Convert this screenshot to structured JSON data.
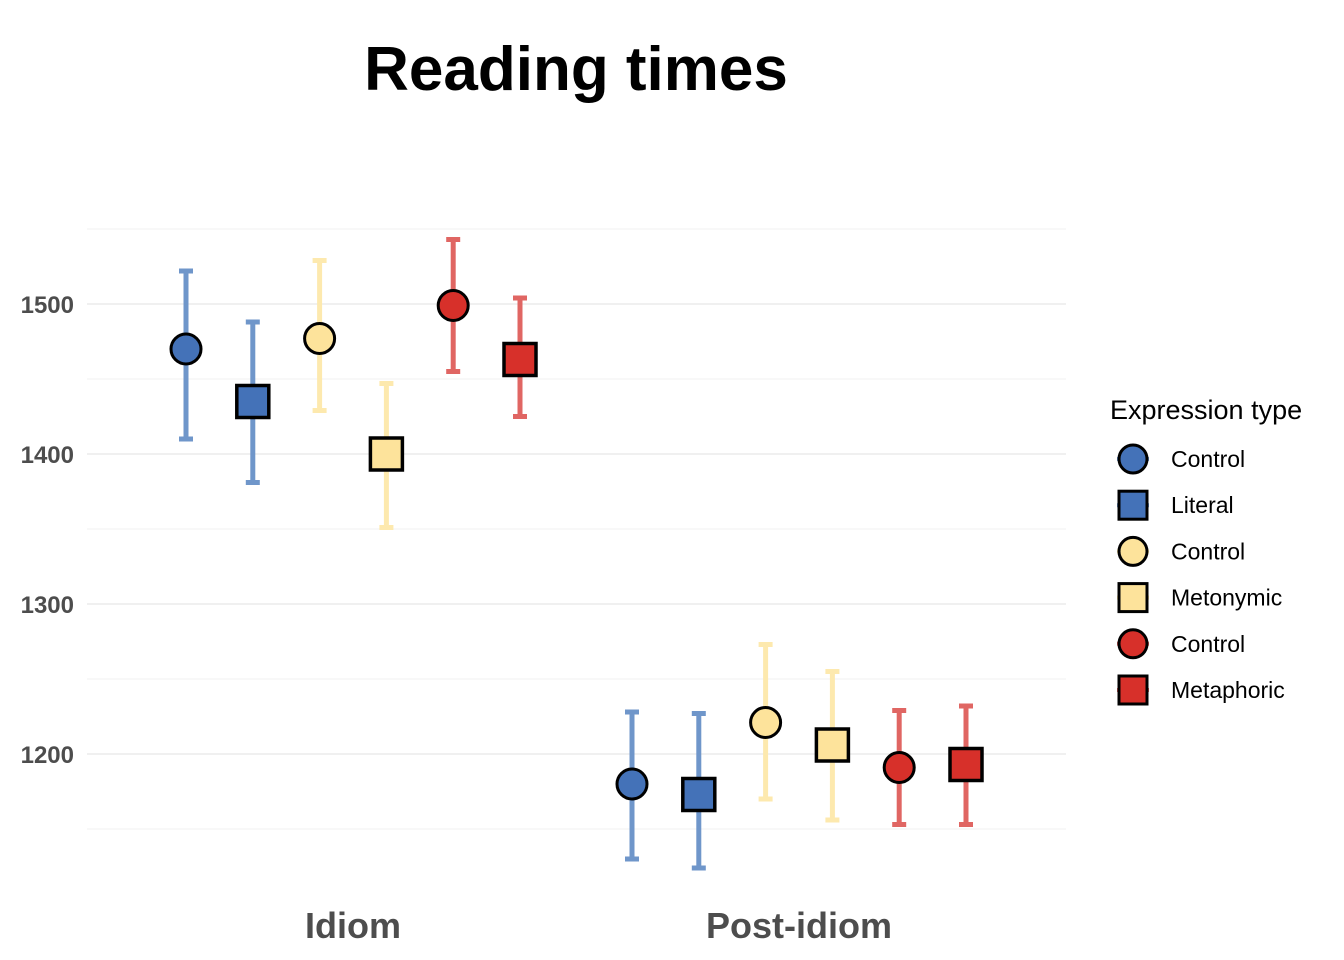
{
  "chart_data": {
    "type": "scatter",
    "title": "Reading times",
    "xlabel": "",
    "ylabel": "",
    "categories": [
      "Idiom",
      "Post-idiom"
    ],
    "y_ticks": [
      "1200",
      "1300",
      "1400",
      "1500"
    ],
    "ylim": [
      1120,
      1570
    ],
    "grid": true,
    "legend": {
      "title": "Expression type",
      "position": "right"
    },
    "series": [
      {
        "name": "Control",
        "color": "#4472b8",
        "band": "#6f96ca",
        "shape": "circle",
        "values": [
          1470,
          1180
        ],
        "lower": [
          1410,
          1130
        ],
        "upper": [
          1522,
          1228
        ]
      },
      {
        "name": "Literal",
        "color": "#4472b8",
        "band": "#6f96ca",
        "shape": "square",
        "values": [
          1435,
          1173
        ],
        "lower": [
          1381,
          1124
        ],
        "upper": [
          1488,
          1227
        ]
      },
      {
        "name": "Control",
        "color": "#fde39b",
        "band": "#fde9ae",
        "shape": "circle",
        "values": [
          1477,
          1221
        ],
        "lower": [
          1429,
          1170
        ],
        "upper": [
          1529,
          1273
        ]
      },
      {
        "name": "Metonymic",
        "color": "#fde39b",
        "band": "#fde9ae",
        "shape": "square",
        "values": [
          1400,
          1206
        ],
        "lower": [
          1351,
          1156
        ],
        "upper": [
          1447,
          1255
        ]
      },
      {
        "name": "Control",
        "color": "#d7302a",
        "band": "#e06663",
        "shape": "circle",
        "values": [
          1499,
          1191
        ],
        "lower": [
          1455,
          1153
        ],
        "upper": [
          1543,
          1229
        ]
      },
      {
        "name": "Metaphoric",
        "color": "#d7302a",
        "band": "#e06663",
        "shape": "square",
        "values": [
          1463,
          1193
        ],
        "lower": [
          1425,
          1153
        ],
        "upper": [
          1504,
          1232
        ]
      }
    ]
  }
}
